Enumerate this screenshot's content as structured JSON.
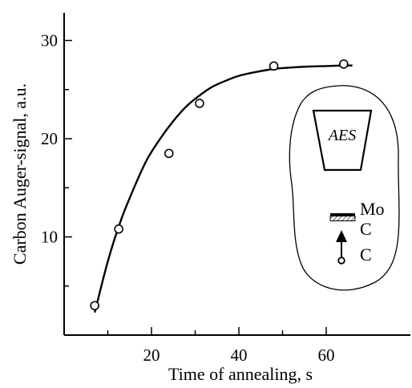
{
  "chart_data": {
    "type": "scatter",
    "xlabel": "Time of annealing, s",
    "ylabel": "Carbon Auger-signal, a.u.",
    "xlim": [
      0,
      70
    ],
    "ylim": [
      0,
      33
    ],
    "x_ticks": [
      20,
      40,
      60
    ],
    "y_ticks": [
      10,
      20,
      30
    ],
    "grid": false,
    "series": [
      {
        "points": [
          {
            "x": 7,
            "y": 3.0
          },
          {
            "x": 12.5,
            "y": 10.8
          },
          {
            "x": 24,
            "y": 18.5
          },
          {
            "x": 31,
            "y": 23.6
          },
          {
            "x": 48,
            "y": 27.4
          },
          {
            "x": 64,
            "y": 27.6
          }
        ],
        "fit_curve": {
          "x": [
            7,
            10,
            13,
            16,
            19,
            22,
            25,
            28,
            31,
            34,
            37,
            40,
            44,
            48,
            52,
            56,
            60,
            64,
            66
          ],
          "y": [
            2.3,
            7.5,
            11.7,
            15.0,
            17.9,
            20.0,
            21.8,
            23.3,
            24.4,
            25.3,
            25.9,
            26.4,
            26.8,
            27.1,
            27.25,
            27.35,
            27.4,
            27.45,
            27.45
          ]
        }
      }
    ],
    "inset": {
      "instrument_label": "AES",
      "layer_labels": [
        "Mo",
        "C",
        "C"
      ]
    }
  }
}
